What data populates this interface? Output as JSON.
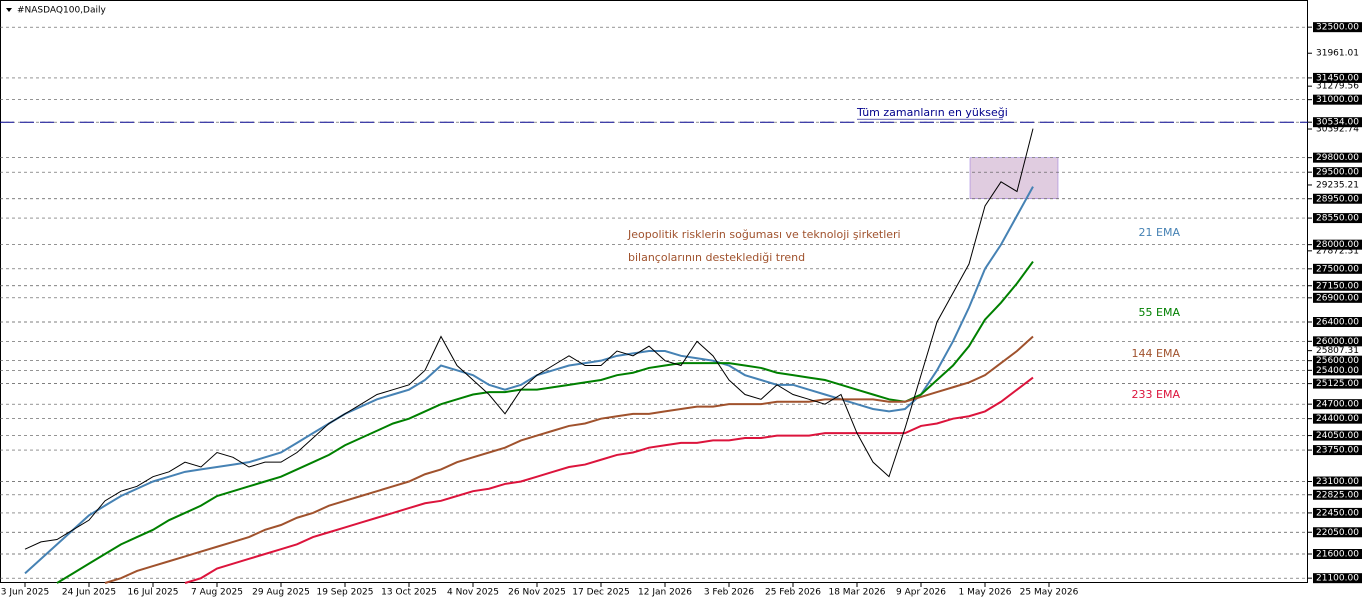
{
  "chart_data": {
    "type": "line",
    "title": "#NASDAQ100,Daily",
    "categories": [
      "3 Jun 2025",
      null,
      null,
      null,
      "24 Jun 2025",
      null,
      null,
      null,
      "16 Jul 2025",
      null,
      null,
      null,
      "7 Aug 2025",
      null,
      null,
      null,
      "29 Aug 2025",
      null,
      null,
      null,
      "19 Sep 2025",
      null,
      null,
      null,
      "13 Oct 2025",
      null,
      null,
      null,
      "4 Nov 2025",
      null,
      null,
      null,
      "26 Nov 2025",
      null,
      null,
      null,
      "17 Dec 2025",
      null,
      null,
      null,
      "12 Jan 2026",
      null,
      null,
      null,
      "3 Feb 2026",
      null,
      null,
      null,
      "25 Feb 2026",
      null,
      null,
      null,
      "18 Mar 2026",
      null,
      null,
      null,
      "9 Apr 2026",
      null,
      null,
      null,
      "1 May 2026",
      null,
      null,
      null,
      "25 May 2026"
    ],
    "values": [
      21700,
      21850,
      21900,
      22100,
      22300,
      22700,
      22900,
      23000,
      23200,
      23300,
      23500,
      23400,
      23700,
      23600,
      23400,
      23500,
      23500,
      23700,
      24000,
      24300,
      24500,
      24700,
      24900,
      25000,
      25100,
      25400,
      26100,
      25500,
      25200,
      24900,
      24500,
      25000,
      25300,
      25500,
      25700,
      25500,
      25500,
      25800,
      25700,
      25900,
      25600,
      25500,
      26000,
      25700,
      25200,
      24900,
      24800,
      25100,
      24900,
      24800,
      24700,
      24900,
      24100,
      23500,
      23200,
      24200,
      25300,
      26400,
      27000,
      27600,
      28800,
      29300,
      29100,
      30400,
      null
    ],
    "color": "#000000",
    "series": [
      {
        "name": "21 EMA",
        "color": "#4682b4",
        "values": [
          21200,
          21500,
          21800,
          22100,
          22400,
          22600,
          22800,
          22950,
          23100,
          23200,
          23300,
          23350,
          23400,
          23450,
          23500,
          23600,
          23700,
          23900,
          24100,
          24300,
          24500,
          24650,
          24800,
          24900,
          25000,
          25200,
          25500,
          25400,
          25300,
          25100,
          25000,
          25100,
          25300,
          25400,
          25500,
          25550,
          25600,
          25700,
          25750,
          25800,
          25800,
          25700,
          25650,
          25600,
          25500,
          25300,
          25200,
          25100,
          25100,
          25000,
          24900,
          24800,
          24700,
          24600,
          24550,
          24600,
          24900,
          25400,
          26000,
          26700,
          27500,
          28000,
          28600,
          29200,
          null
        ]
      },
      {
        "name": "55 EMA",
        "color": "#008000",
        "values": [
          null,
          null,
          21000,
          21200,
          21400,
          21600,
          21800,
          21950,
          22100,
          22300,
          22450,
          22600,
          22800,
          22900,
          23000,
          23100,
          23200,
          23350,
          23500,
          23650,
          23850,
          24000,
          24150,
          24300,
          24400,
          24550,
          24700,
          24800,
          24900,
          24950,
          24950,
          25000,
          25000,
          25050,
          25100,
          25150,
          25200,
          25300,
          25350,
          25450,
          25500,
          25550,
          25550,
          25550,
          25550,
          25500,
          25450,
          25350,
          25300,
          25250,
          25200,
          25100,
          25000,
          24900,
          24800,
          24750,
          24900,
          25200,
          25500,
          25900,
          26450,
          26800,
          27200,
          27650,
          null
        ]
      },
      {
        "name": "144 EMA",
        "color": "#a0522d",
        "values": [
          null,
          null,
          null,
          null,
          null,
          21000,
          21100,
          21250,
          21350,
          21450,
          21550,
          21650,
          21750,
          21850,
          21950,
          22100,
          22200,
          22350,
          22450,
          22600,
          22700,
          22800,
          22900,
          23000,
          23100,
          23250,
          23350,
          23500,
          23600,
          23700,
          23800,
          23950,
          24050,
          24150,
          24250,
          24300,
          24400,
          24450,
          24500,
          24500,
          24550,
          24600,
          24650,
          24650,
          24700,
          24700,
          24700,
          24750,
          24750,
          24750,
          24800,
          24800,
          24800,
          24800,
          24750,
          24750,
          24850,
          24950,
          25050,
          25150,
          25300,
          25550,
          25800,
          26100,
          null
        ]
      },
      {
        "name": "233 EMA",
        "color": "#dc143c",
        "values": [
          null,
          null,
          null,
          null,
          null,
          null,
          null,
          null,
          null,
          null,
          21000,
          21100,
          21300,
          21400,
          21500,
          21600,
          21700,
          21800,
          21950,
          22050,
          22150,
          22250,
          22350,
          22450,
          22550,
          22650,
          22700,
          22800,
          22900,
          22950,
          23050,
          23100,
          23200,
          23300,
          23400,
          23450,
          23550,
          23650,
          23700,
          23800,
          23850,
          23900,
          23900,
          23950,
          23950,
          24000,
          24000,
          24050,
          24050,
          24050,
          24100,
          24100,
          24100,
          24100,
          24100,
          24100,
          24250,
          24300,
          24400,
          24450,
          24550,
          24750,
          25000,
          25250,
          null
        ]
      }
    ],
    "ylim": [
      21000,
      33000
    ],
    "yticks": [
      {
        "value": 32500,
        "label": "32500.00",
        "level": true
      },
      {
        "value": 31961.01,
        "label": "31961.01"
      },
      {
        "value": 31450,
        "label": "31450.00",
        "level": true
      },
      {
        "value": 31279.56,
        "label": "31279.56"
      },
      {
        "value": 31000,
        "label": "31000.00",
        "level": true
      },
      {
        "value": 30534,
        "label": "30534.00",
        "level": true
      },
      {
        "value": 30392.74,
        "label": "30392.74"
      },
      {
        "value": 29800,
        "label": "29800.00",
        "level": true
      },
      {
        "value": 29500,
        "label": "29500.00",
        "level": true
      },
      {
        "value": 29235.21,
        "label": "29235.21"
      },
      {
        "value": 28950,
        "label": "28950.00",
        "level": true
      },
      {
        "value": 28550,
        "label": "28550.00",
        "level": true
      },
      {
        "value": 28000,
        "label": "28000.00",
        "level": true
      },
      {
        "value": 27872.31,
        "label": "27872.31"
      },
      {
        "value": 27500,
        "label": "27500.00",
        "level": true
      },
      {
        "value": 27150,
        "label": "27150.00",
        "level": true
      },
      {
        "value": 26900,
        "label": "26900.00",
        "level": true
      },
      {
        "value": 26400,
        "label": "26400.00",
        "level": true
      },
      {
        "value": 26000,
        "label": "26000.00",
        "level": true
      },
      {
        "value": 25807.31,
        "label": "25807.31"
      },
      {
        "value": 25600,
        "label": "25600.00",
        "level": true
      },
      {
        "value": 25400,
        "label": "25400.00",
        "level": true
      },
      {
        "value": 25125,
        "label": "25125.00",
        "level": true
      },
      {
        "value": 24700,
        "label": "24700.00",
        "level": true
      },
      {
        "value": 24400,
        "label": "24400.00",
        "level": true
      },
      {
        "value": 24050,
        "label": "24050.00",
        "level": true
      },
      {
        "value": 23750,
        "label": "23750.00",
        "level": true
      },
      {
        "value": 23100,
        "label": "23100.00",
        "level": true
      },
      {
        "value": 22825,
        "label": "22825.00",
        "level": true
      },
      {
        "value": 22450,
        "label": "22450.00",
        "level": true
      },
      {
        "value": 22050,
        "label": "22050.00",
        "level": true
      },
      {
        "value": 21600,
        "label": "21600.00",
        "level": true
      },
      {
        "value": 21100,
        "label": "21100.00",
        "level": true
      }
    ],
    "annotations": [
      {
        "text": "Tüm zamanların en yükseği",
        "y": 30534,
        "color": "#00008b"
      },
      {
        "text": "Jeopolitik risklerin soğuması ve teknoloji şirketleri",
        "color": "#a0522d"
      },
      {
        "text": "bilançolarının desteklediği trend",
        "color": "#a0522d"
      }
    ],
    "highlight": {
      "ylim": [
        28950,
        29800
      ],
      "color": "#d8bfd8"
    }
  }
}
